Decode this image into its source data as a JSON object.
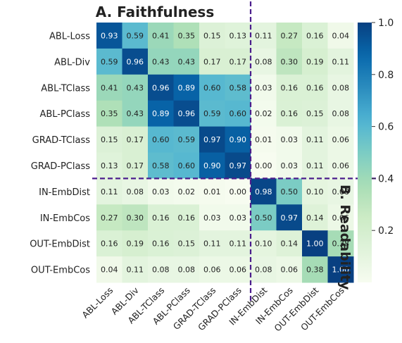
{
  "chart_data": {
    "type": "heatmap",
    "title": "A. Faithfulness",
    "side_title": "B. Readability",
    "rows": [
      "ABL-Loss",
      "ABL-Div",
      "ABL-TClass",
      "ABL-PClass",
      "GRAD-TClass",
      "GRAD-PClass",
      "IN-EmbDist",
      "IN-EmbCos",
      "OUT-EmbDist",
      "OUT-EmbCos"
    ],
    "cols": [
      "ABL-Loss",
      "ABL-Div",
      "ABL-TClass",
      "ABL-PClass",
      "GRAD-TClass",
      "GRAD-PClass",
      "IN-EmbDist",
      "IN-EmbCos",
      "OUT-EmbDist",
      "OUT-EmbCos"
    ],
    "values": [
      [
        0.93,
        0.59,
        0.41,
        0.35,
        0.15,
        0.13,
        0.11,
        0.27,
        0.16,
        0.04
      ],
      [
        0.59,
        0.96,
        0.43,
        0.43,
        0.17,
        0.17,
        0.08,
        0.3,
        0.19,
        0.11
      ],
      [
        0.41,
        0.43,
        0.96,
        0.89,
        0.6,
        0.58,
        0.03,
        0.16,
        0.16,
        0.08
      ],
      [
        0.35,
        0.43,
        0.89,
        0.96,
        0.59,
        0.6,
        0.02,
        0.16,
        0.15,
        0.08
      ],
      [
        0.15,
        0.17,
        0.6,
        0.59,
        0.97,
        0.9,
        0.01,
        0.03,
        0.11,
        0.06
      ],
      [
        0.13,
        0.17,
        0.58,
        0.6,
        0.9,
        0.97,
        0.0,
        0.03,
        0.11,
        0.06
      ],
      [
        0.11,
        0.08,
        0.03,
        0.02,
        0.01,
        0.0,
        0.98,
        0.5,
        0.1,
        0.08
      ],
      [
        0.27,
        0.3,
        0.16,
        0.16,
        0.03,
        0.03,
        0.5,
        0.97,
        0.14,
        0.06
      ],
      [
        0.16,
        0.19,
        0.16,
        0.15,
        0.11,
        0.11,
        0.1,
        0.14,
        1.0,
        0.38
      ],
      [
        0.04,
        0.11,
        0.08,
        0.08,
        0.06,
        0.06,
        0.08,
        0.06,
        0.38,
        1.0
      ]
    ],
    "colorbar": {
      "range": [
        0.0,
        1.0
      ],
      "ticks": [
        "1.0",
        "0.8",
        "0.6",
        "0.4",
        "0.2"
      ],
      "colormap": "GnBu"
    },
    "divider": {
      "after_row": 6,
      "after_col": 6,
      "style": "dashed",
      "color": "#4b1d8c"
    }
  }
}
